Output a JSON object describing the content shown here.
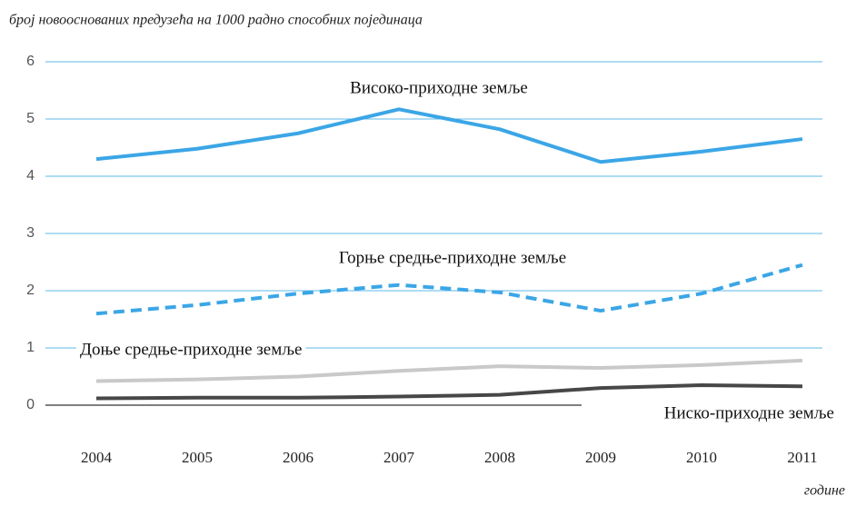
{
  "chart_data": {
    "type": "line",
    "title": "број новооснованих предузећа на 1000 радно способних појединаца",
    "x_label": "године",
    "categories": [
      "2004",
      "2005",
      "2006",
      "2007",
      "2008",
      "2009",
      "2010",
      "2011"
    ],
    "series": [
      {
        "name": "Високо-приходне земље",
        "color": "#3ba6e6",
        "dash": "solid",
        "values": [
          4.3,
          4.48,
          4.75,
          5.17,
          4.82,
          4.25,
          4.43,
          4.65
        ]
      },
      {
        "name": "Горње средње-приходне земље",
        "color": "#3ba6e6",
        "dash": "dashed",
        "values": [
          1.6,
          1.75,
          1.95,
          2.1,
          1.97,
          1.65,
          1.95,
          2.45
        ]
      },
      {
        "name": "Доње средње-приходне земље",
        "color": "#c9c9c9",
        "dash": "solid",
        "values": [
          0.42,
          0.45,
          0.5,
          0.6,
          0.68,
          0.65,
          0.7,
          0.78
        ]
      },
      {
        "name": "Ниско-приходне земље",
        "color": "#474747",
        "dash": "solid",
        "values": [
          0.12,
          0.13,
          0.13,
          0.15,
          0.18,
          0.3,
          0.35,
          0.33
        ]
      }
    ],
    "ylim": [
      0,
      6
    ],
    "yticks": [
      0,
      1,
      2,
      3,
      4,
      5,
      6
    ],
    "grid": true
  }
}
